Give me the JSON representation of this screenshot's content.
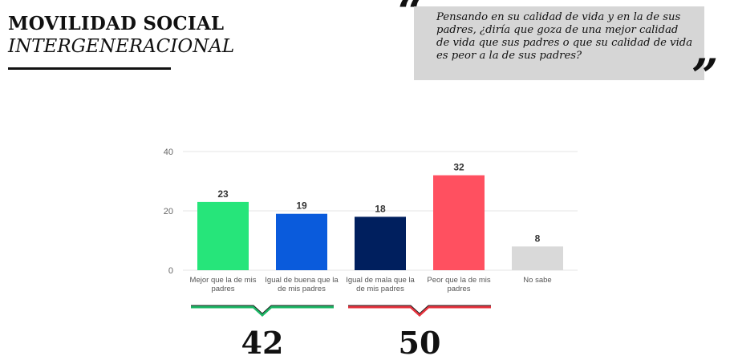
{
  "header": {
    "title_line1": "MOVILIDAD SOCIAL",
    "title_line2": "INTERGENERACIONAL"
  },
  "question": {
    "open_mark": "“",
    "close_mark": "”",
    "text": "Pensando en su calidad de vida y en la de sus padres, ¿diría que goza de una mejor calidad de vida que sus padres o que su calidad de vida es peor a la de sus padres?"
  },
  "chart_data": {
    "type": "bar",
    "categories": [
      [
        "Mejor que la de mis",
        "padres"
      ],
      [
        "Igual de buena que la",
        "de mis padres"
      ],
      [
        "Igual de mala que la",
        "de mis padres"
      ],
      [
        "Peor que la de mis",
        "padres"
      ],
      [
        "No sabe"
      ]
    ],
    "values": [
      23,
      19,
      18,
      32,
      8
    ],
    "colors": [
      "#26e57a",
      "#0a5bdc",
      "#001f5e",
      "#ff5060",
      "#d9d9d9"
    ],
    "yticks": [
      0,
      20,
      40
    ],
    "ylim": [
      0,
      40
    ],
    "grid": true
  },
  "groups": [
    {
      "total": "42",
      "color": "#1db766",
      "from": 0,
      "to": 1
    },
    {
      "total": "50",
      "color": "#e6343f",
      "from": 2,
      "to": 3
    }
  ]
}
